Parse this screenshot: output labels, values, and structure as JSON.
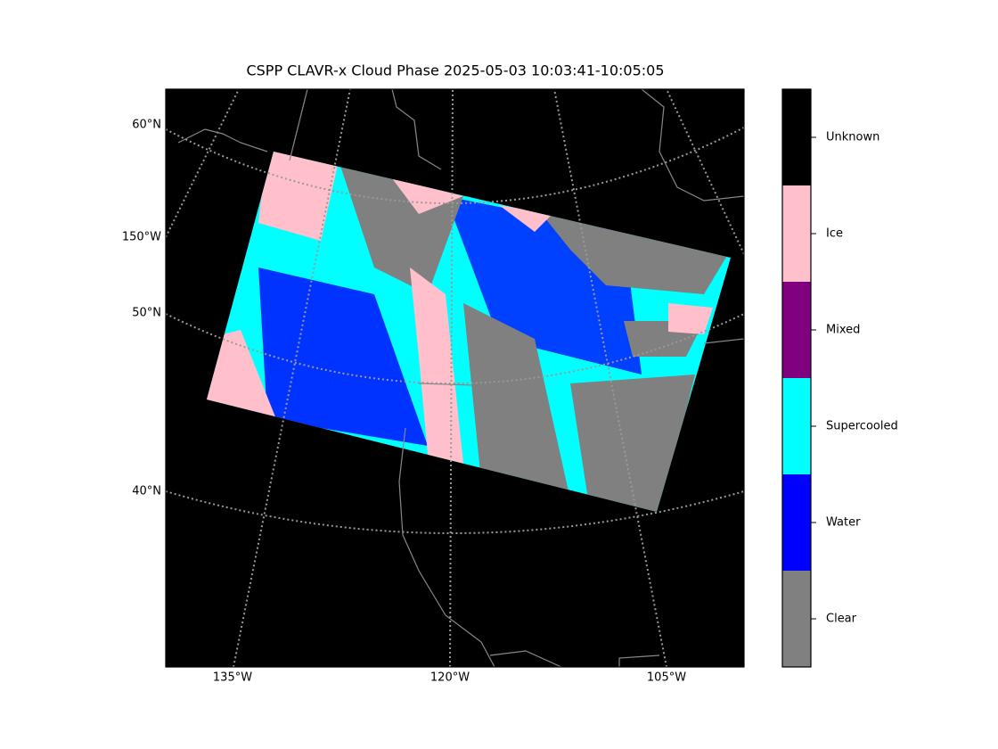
{
  "title": "CSPP CLAVR-x Cloud Phase 2025-05-03 10:03:41-10:05:05",
  "map": {
    "lat_labels": [
      "60°N",
      "150°W",
      "50°N",
      "40°N"
    ],
    "lon_labels": [
      "135°W",
      "120°W",
      "105°W"
    ]
  },
  "colorbar": {
    "labels": [
      "Clear",
      "Water",
      "Supercooled",
      "Mixed",
      "Ice",
      "Unknown"
    ],
    "colors": [
      "#808080",
      "#0000ff",
      "#00ffff",
      "#800080",
      "#ffc0cb",
      "#000000"
    ]
  }
}
